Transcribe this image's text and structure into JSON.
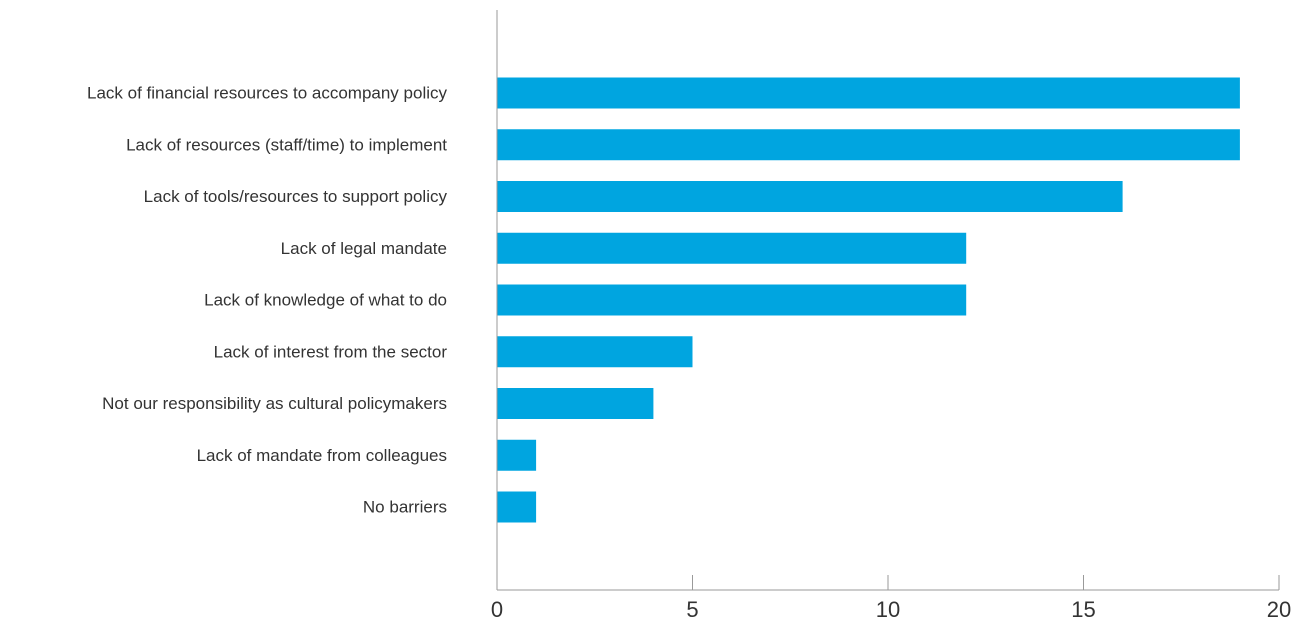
{
  "chart_data": {
    "type": "bar",
    "orientation": "horizontal",
    "categories": [
      "Lack of financial resources to accompany policy",
      "Lack of resources (staff/time) to implement",
      "Lack of tools/resources to support policy",
      "Lack of legal mandate",
      "Lack of knowledge of what to do",
      "Lack of interest from the sector",
      "Not our responsibility as cultural policymakers",
      "Lack of mandate from colleagues",
      "No barriers"
    ],
    "values": [
      19,
      19,
      16,
      12,
      12,
      5,
      4,
      1,
      1
    ],
    "xlim": [
      0,
      20
    ],
    "xticks": [
      "0",
      "5",
      "10",
      "15",
      "20"
    ],
    "bar_color": "#00a5e0",
    "grid": false
  }
}
